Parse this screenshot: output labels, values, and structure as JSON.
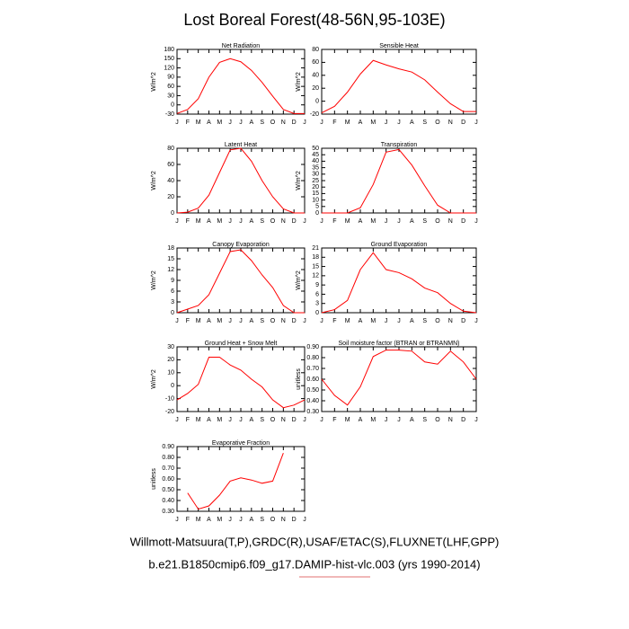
{
  "title": "Lost Boreal Forest(48-56N,95-103E)",
  "footer": [
    "Willmott-Matsuura(T,P),GRDC(R),USAF/ETAC(S),FLUXNET(LHF,GPP)",
    "b.e21.B1850cmip6.f09_g17.DAMIP-hist-vlc.003 (yrs 1990-2014)"
  ],
  "chart_data": [
    {
      "type": "line",
      "title": "Net Radiation",
      "ylabel": "W/m^2",
      "categories": [
        "J",
        "F",
        "M",
        "A",
        "M",
        "J",
        "J",
        "A",
        "S",
        "O",
        "N",
        "D",
        "J"
      ],
      "series": [
        {
          "color": "#ff0000",
          "values": [
            -28,
            -15,
            20,
            90,
            138,
            150,
            140,
            112,
            73,
            28,
            -15,
            -28,
            -28
          ]
        }
      ],
      "ylim": [
        -30,
        180
      ],
      "yticks": [
        -30,
        0,
        30,
        60,
        90,
        120,
        150,
        180
      ]
    },
    {
      "type": "line",
      "title": "Sensible Heat",
      "ylabel": "W/m^2",
      "categories": [
        "J",
        "F",
        "M",
        "A",
        "M",
        "J",
        "J",
        "A",
        "S",
        "O",
        "N",
        "D",
        "J"
      ],
      "series": [
        {
          "color": "#ff0000",
          "values": [
            -18,
            -8,
            14,
            42,
            63,
            56,
            50,
            45,
            33,
            14,
            -4,
            -16,
            -16
          ]
        }
      ],
      "ylim": [
        -20,
        80
      ],
      "yticks": [
        -20,
        0,
        20,
        40,
        60,
        80
      ]
    },
    {
      "type": "line",
      "title": "Latent Heat",
      "ylabel": "W/m^2",
      "categories": [
        "J",
        "F",
        "M",
        "A",
        "M",
        "J",
        "J",
        "A",
        "S",
        "O",
        "N",
        "D",
        "J"
      ],
      "series": [
        {
          "color": "#ff0000",
          "values": [
            0,
            1,
            6,
            22,
            50,
            78,
            80,
            64,
            40,
            20,
            5,
            0,
            0
          ]
        }
      ],
      "ylim": [
        0,
        80
      ],
      "yticks": [
        0,
        20,
        40,
        60,
        80
      ]
    },
    {
      "type": "line",
      "title": "Transpiration",
      "ylabel": "W/m^2",
      "categories": [
        "J",
        "F",
        "M",
        "A",
        "M",
        "J",
        "J",
        "A",
        "S",
        "O",
        "N",
        "D",
        "J"
      ],
      "series": [
        {
          "color": "#ff0000",
          "values": [
            0,
            0,
            0,
            4,
            22,
            47,
            49,
            37,
            21,
            6,
            0,
            0,
            0
          ]
        }
      ],
      "ylim": [
        0,
        50
      ],
      "yticks": [
        0,
        5,
        10,
        15,
        20,
        25,
        30,
        35,
        40,
        45,
        50
      ]
    },
    {
      "type": "line",
      "title": "Canopy Evaporation",
      "ylabel": "W/m^2",
      "categories": [
        "J",
        "F",
        "M",
        "A",
        "M",
        "J",
        "J",
        "A",
        "S",
        "O",
        "N",
        "D",
        "J"
      ],
      "series": [
        {
          "color": "#ff0000",
          "values": [
            0,
            1,
            2,
            5,
            11,
            17,
            17.5,
            14.5,
            10.5,
            7,
            2,
            0,
            0
          ]
        }
      ],
      "ylim": [
        0,
        18
      ],
      "yticks": [
        0,
        3,
        6,
        9,
        12,
        15,
        18
      ]
    },
    {
      "type": "line",
      "title": "Ground Evaporation",
      "ylabel": "W/m^2",
      "categories": [
        "J",
        "F",
        "M",
        "A",
        "M",
        "J",
        "J",
        "A",
        "S",
        "O",
        "N",
        "D",
        "J"
      ],
      "series": [
        {
          "color": "#ff0000",
          "values": [
            0,
            1,
            4,
            14,
            19.5,
            14,
            13,
            11,
            8,
            6.5,
            3,
            0.5,
            0
          ]
        }
      ],
      "ylim": [
        0,
        21
      ],
      "yticks": [
        0,
        3,
        6,
        9,
        12,
        15,
        18,
        21
      ]
    },
    {
      "type": "line",
      "title": "Ground Heat + Snow Melt",
      "ylabel": "W/m^2",
      "categories": [
        "J",
        "F",
        "M",
        "A",
        "M",
        "J",
        "J",
        "A",
        "S",
        "O",
        "N",
        "D",
        "J"
      ],
      "series": [
        {
          "color": "#ff0000",
          "values": [
            -11,
            -6,
            1,
            22,
            22,
            16,
            12,
            5,
            -1,
            -11,
            -17,
            -15,
            -11
          ]
        }
      ],
      "ylim": [
        -20,
        30
      ],
      "yticks": [
        -20,
        -10,
        0,
        10,
        20,
        30
      ]
    },
    {
      "type": "line",
      "title": "Soil moisture factor (BTRAN or BTRANMN)",
      "ylabel": "unitless",
      "categories": [
        "J",
        "F",
        "M",
        "A",
        "M",
        "J",
        "J",
        "A",
        "S",
        "O",
        "N",
        "D",
        "J"
      ],
      "series": [
        {
          "color": "#ff0000",
          "values": [
            0.6,
            0.45,
            0.36,
            0.53,
            0.81,
            0.87,
            0.87,
            0.86,
            0.76,
            0.74,
            0.86,
            0.76,
            0.6
          ]
        }
      ],
      "ylim": [
        0.3,
        0.9
      ],
      "yticks": [
        {
          "value": 0.3,
          "label": "0.30"
        },
        {
          "value": 0.4,
          "label": "0.40"
        },
        {
          "value": 0.5,
          "label": "0.50"
        },
        {
          "value": 0.6,
          "label": "0.60"
        },
        {
          "value": 0.7,
          "label": "0.70"
        },
        {
          "value": 0.8,
          "label": "0.80"
        },
        {
          "value": 0.9,
          "label": "0.90"
        }
      ]
    },
    {
      "type": "line",
      "title": "Evaporative Fraction",
      "ylabel": "unitless",
      "categories": [
        "J",
        "F",
        "M",
        "A",
        "M",
        "J",
        "J",
        "A",
        "S",
        "O",
        "N",
        "D",
        "J"
      ],
      "series": [
        {
          "color": "#ff0000",
          "values": [
            null,
            0.47,
            0.32,
            0.35,
            0.45,
            0.58,
            0.61,
            0.59,
            0.56,
            0.58,
            0.84,
            null,
            null
          ]
        }
      ],
      "ylim": [
        0.3,
        0.9
      ],
      "yticks": [
        {
          "value": 0.3,
          "label": "0.30"
        },
        {
          "value": 0.4,
          "label": "0.40"
        },
        {
          "value": 0.5,
          "label": "0.50"
        },
        {
          "value": 0.6,
          "label": "0.60"
        },
        {
          "value": 0.7,
          "label": "0.70"
        },
        {
          "value": 0.8,
          "label": "0.80"
        },
        {
          "value": 0.9,
          "label": "0.90"
        }
      ]
    }
  ]
}
